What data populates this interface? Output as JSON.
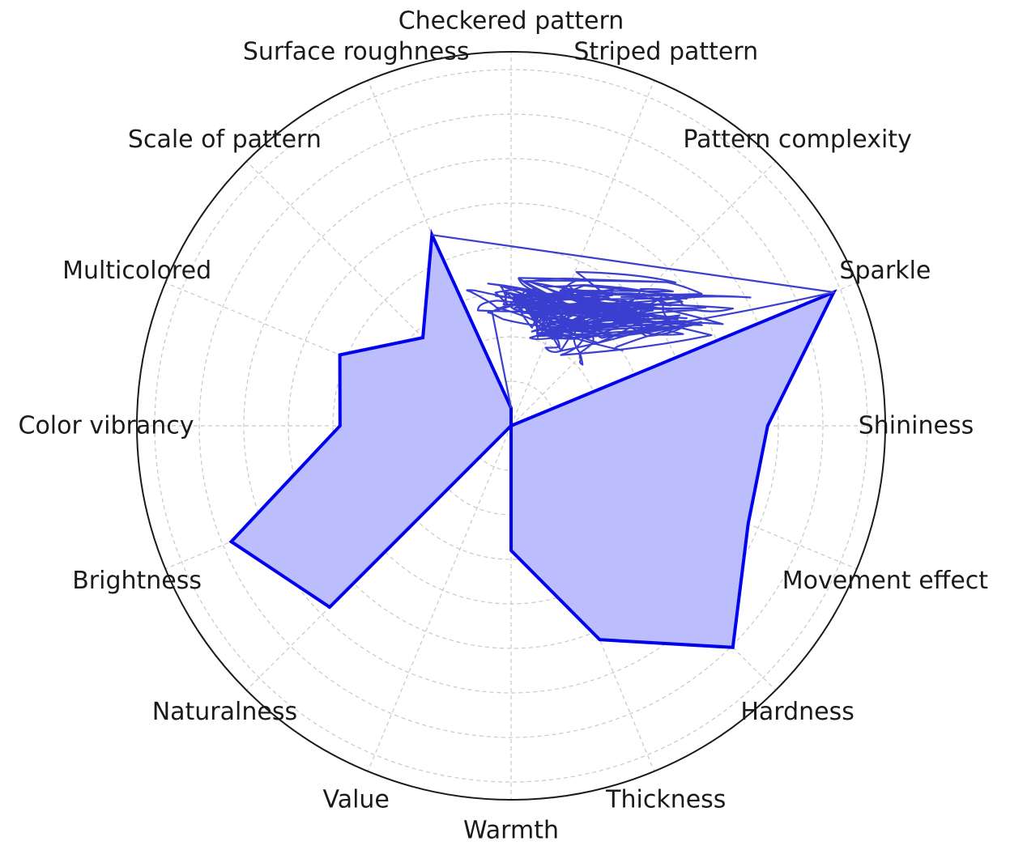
{
  "chart_data": {
    "type": "radar",
    "title": "",
    "axes": [
      "Checkered pattern",
      "Striped pattern",
      "Pattern complexity",
      "Sparkle",
      "Shininess",
      "Movement effect",
      "Hardness",
      "Thickness",
      "Warmth",
      "Value",
      "Naturalness",
      "Brightness",
      "Color vibrancy",
      "Multicolored",
      "Scale of pattern",
      "Surface roughness"
    ],
    "series": [
      {
        "values": [
          0.05,
          0.0,
          0.0,
          0.98,
          0.72,
          0.72,
          0.88,
          0.65,
          0.35,
          0.0,
          0.72,
          0.85,
          0.48,
          0.52,
          0.35,
          0.58
        ],
        "color": "#0000ee",
        "fill": "#bbbdfd"
      }
    ],
    "range": [
      0,
      1
    ],
    "rings": 8,
    "grid": true,
    "scribble_color": "#3a3fcf"
  }
}
